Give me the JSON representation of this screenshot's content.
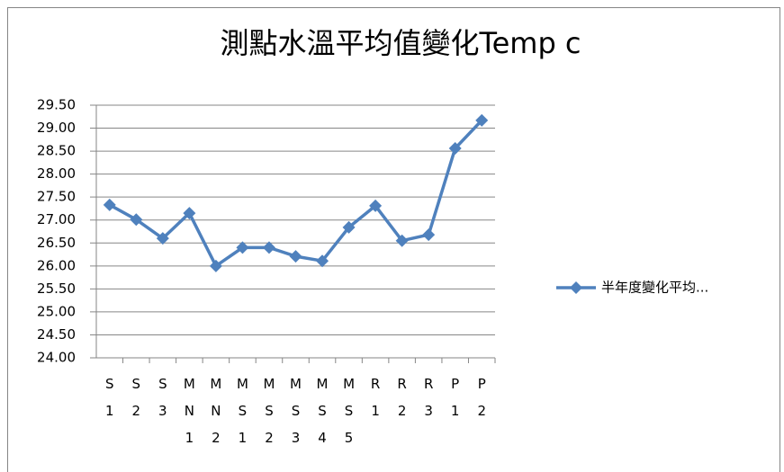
{
  "chart_data": {
    "type": "line",
    "title": "測點水溫平均值變化Temp c",
    "categories": [
      "S1",
      "S2",
      "S3",
      "MN1",
      "MN2",
      "MS1",
      "MS2",
      "MS3",
      "MS4",
      "MS5",
      "R1",
      "R2",
      "R3",
      "P1",
      "P2"
    ],
    "series": [
      {
        "name": "半年度變化平均...",
        "color": "#4f81bd",
        "values": [
          27.33,
          27.01,
          26.6,
          27.15,
          26.0,
          26.4,
          26.4,
          26.21,
          26.11,
          26.84,
          27.31,
          26.55,
          26.68,
          28.56,
          29.17
        ]
      }
    ],
    "ylim": [
      24,
      29.5
    ],
    "yticks": [
      {
        "value": 24,
        "label": "24.00"
      },
      {
        "value": 24.5,
        "label": "24.50"
      },
      {
        "value": 25,
        "label": "25.00"
      },
      {
        "value": 25.5,
        "label": "25.50"
      },
      {
        "value": 26,
        "label": "26.00"
      },
      {
        "value": 26.5,
        "label": "26.50"
      },
      {
        "value": 27,
        "label": "27.00"
      },
      {
        "value": 27.5,
        "label": "27.50"
      },
      {
        "value": 28,
        "label": "28.00"
      },
      {
        "value": 28.5,
        "label": "28.50"
      },
      {
        "value": 29,
        "label": "29.00"
      },
      {
        "value": 29.5,
        "label": "29.50"
      }
    ],
    "grid": true,
    "legend": "right"
  }
}
